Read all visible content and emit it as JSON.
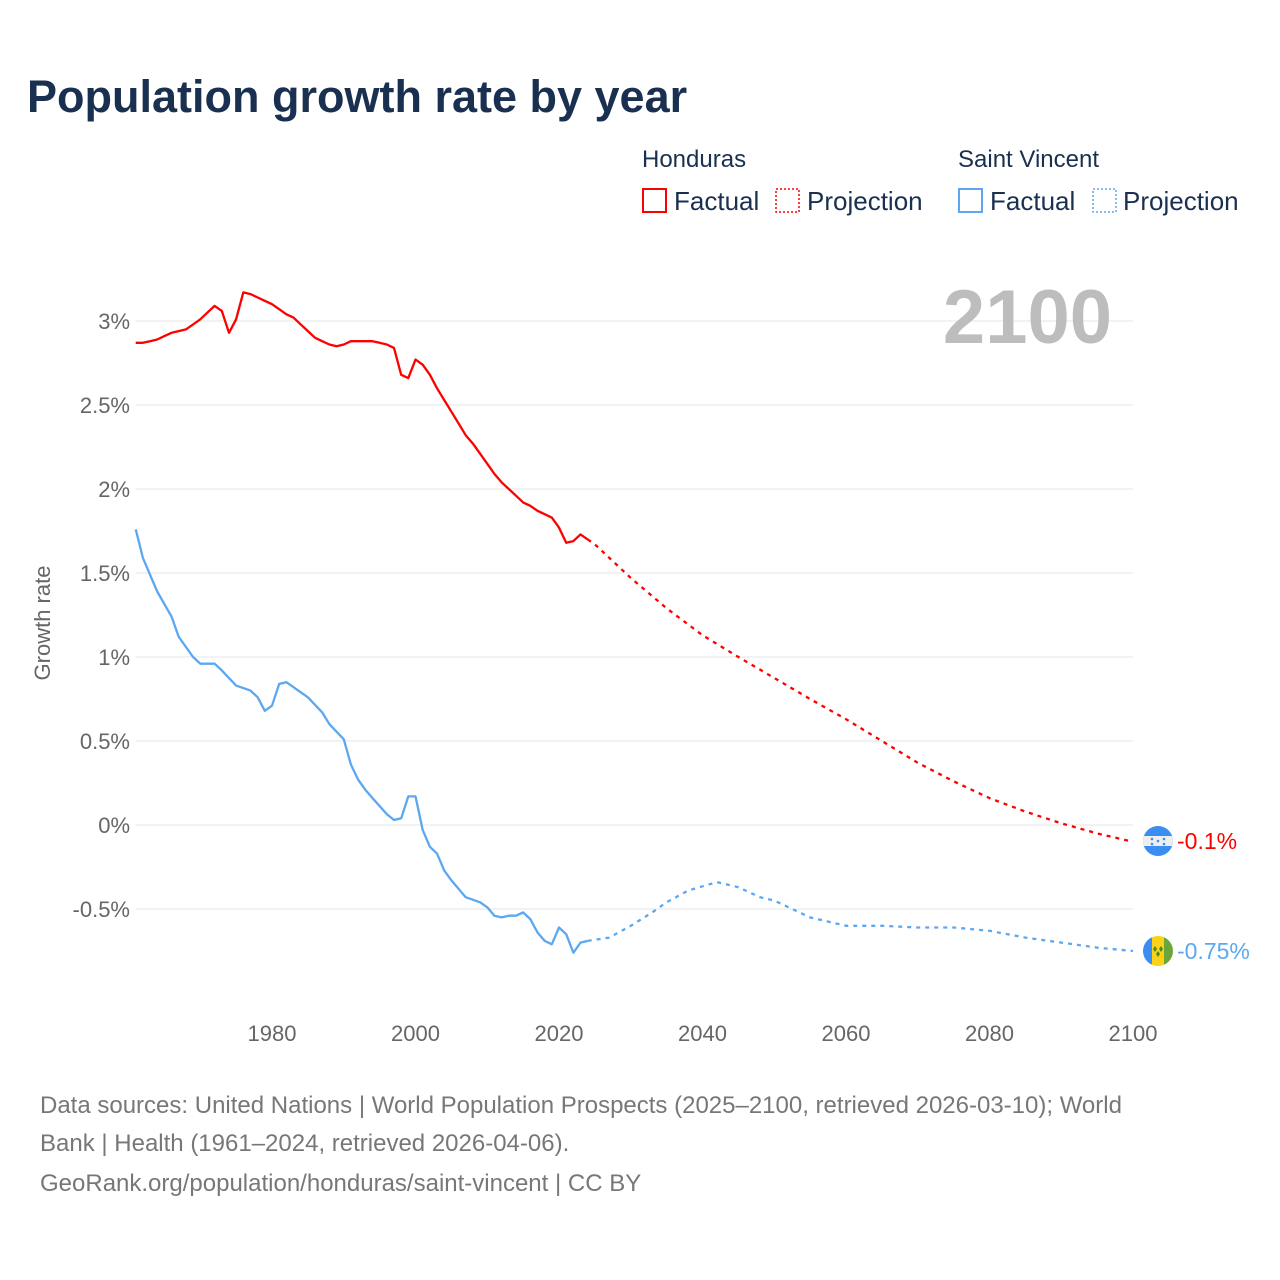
{
  "chart_data": {
    "type": "line",
    "title": "Population growth rate by year",
    "ylabel": "Growth rate",
    "xlabel": "",
    "xlim": [
      1961,
      2100
    ],
    "ylim": [
      -1,
      3.25
    ],
    "xticks": [
      1980,
      2000,
      2020,
      2040,
      2060,
      2080,
      2100
    ],
    "xtick_labels": [
      "1980",
      "2000",
      "2020",
      "2040",
      "2060",
      "2080",
      "2100"
    ],
    "yticks": [
      3,
      2.5,
      2,
      1.5,
      1,
      0.5,
      0,
      -0.5
    ],
    "ytick_labels": [
      "3%",
      "2.5%",
      "2%",
      "1.5%",
      "1%",
      "0.5%",
      "0%",
      "-0.5%"
    ],
    "grid": true,
    "year_label": "2100",
    "legend": {
      "placement": "top-right",
      "groups": [
        {
          "name": "Honduras",
          "factual": "Factual",
          "projection": "Projection",
          "color": "#ff0000"
        },
        {
          "name": "Saint Vincent",
          "factual": "Factual",
          "projection": "Projection",
          "color": "#5ca8f0"
        }
      ]
    },
    "series": [
      {
        "name": "Honduras",
        "color": "#ff0000",
        "end_label": "-0.1%",
        "factual": {
          "x": [
            1961,
            1962,
            1963,
            1964,
            1965,
            1966,
            1967,
            1968,
            1969,
            1970,
            1971,
            1972,
            1973,
            1974,
            1975,
            1976,
            1977,
            1978,
            1979,
            1980,
            1981,
            1982,
            1983,
            1984,
            1985,
            1986,
            1987,
            1988,
            1989,
            1990,
            1991,
            1992,
            1993,
            1994,
            1995,
            1996,
            1997,
            1998,
            1999,
            2000,
            2001,
            2002,
            2003,
            2004,
            2005,
            2006,
            2007,
            2008,
            2009,
            2010,
            2011,
            2012,
            2013,
            2014,
            2015,
            2016,
            2017,
            2018,
            2019,
            2020,
            2021,
            2022,
            2023,
            2024
          ],
          "y": [
            2.87,
            2.87,
            2.88,
            2.89,
            2.91,
            2.93,
            2.94,
            2.95,
            2.98,
            3.01,
            3.05,
            3.09,
            3.06,
            2.93,
            3.01,
            3.17,
            3.16,
            3.14,
            3.12,
            3.1,
            3.07,
            3.04,
            3.02,
            2.98,
            2.94,
            2.9,
            2.88,
            2.86,
            2.85,
            2.86,
            2.88,
            2.88,
            2.88,
            2.88,
            2.87,
            2.86,
            2.84,
            2.68,
            2.66,
            2.77,
            2.74,
            2.68,
            2.6,
            2.53,
            2.46,
            2.39,
            2.32,
            2.27,
            2.21,
            2.15,
            2.09,
            2.04,
            2.0,
            1.96,
            1.92,
            1.9,
            1.87,
            1.85,
            1.83,
            1.77,
            1.68,
            1.69,
            1.73,
            1.7
          ]
        },
        "projection": {
          "x": [
            2024,
            2025,
            2030,
            2035,
            2040,
            2045,
            2050,
            2055,
            2060,
            2065,
            2070,
            2075,
            2080,
            2085,
            2090,
            2095,
            2100
          ],
          "y": [
            1.7,
            1.67,
            1.47,
            1.29,
            1.13,
            1.0,
            0.875,
            0.75,
            0.63,
            0.5,
            0.37,
            0.26,
            0.16,
            0.08,
            0.01,
            -0.05,
            -0.1
          ]
        }
      },
      {
        "name": "Saint Vincent",
        "color": "#5ca8f0",
        "end_label": "-0.75%",
        "factual": {
          "x": [
            1961,
            1962,
            1964,
            1966,
            1967,
            1969,
            1970,
            1972,
            1973,
            1975,
            1977,
            1978,
            1979,
            1980,
            1981,
            1982,
            1985,
            1987,
            1988,
            1990,
            1991,
            1992,
            1993,
            1994,
            1996,
            1997,
            1998,
            1999,
            2000,
            2001,
            2002,
            2003,
            2004,
            2005,
            2007,
            2009,
            2010,
            2011,
            2012,
            2013,
            2014,
            2015,
            2016,
            2017,
            2018,
            2019,
            2020,
            2021,
            2022,
            2023,
            2024
          ],
          "y": [
            1.76,
            1.59,
            1.39,
            1.24,
            1.12,
            1.0,
            0.96,
            0.96,
            0.92,
            0.83,
            0.8,
            0.76,
            0.68,
            0.71,
            0.84,
            0.85,
            0.76,
            0.67,
            0.6,
            0.51,
            0.36,
            0.27,
            0.21,
            0.16,
            0.065,
            0.03,
            0.04,
            0.17,
            0.17,
            -0.03,
            -0.13,
            -0.17,
            -0.27,
            -0.33,
            -0.43,
            -0.46,
            -0.49,
            -0.54,
            -0.55,
            -0.54,
            -0.54,
            -0.52,
            -0.56,
            -0.64,
            -0.69,
            -0.71,
            -0.61,
            -0.65,
            -0.76,
            -0.7,
            -0.69
          ]
        },
        "projection": {
          "x": [
            2024,
            2027,
            2030,
            2033,
            2035,
            2038,
            2042,
            2045,
            2048,
            2050,
            2053,
            2055,
            2060,
            2065,
            2070,
            2075,
            2080,
            2085,
            2090,
            2095,
            2100
          ],
          "y": [
            -0.69,
            -0.67,
            -0.6,
            -0.52,
            -0.46,
            -0.39,
            -0.34,
            -0.37,
            -0.43,
            -0.45,
            -0.51,
            -0.55,
            -0.6,
            -0.6,
            -0.61,
            -0.61,
            -0.63,
            -0.67,
            -0.7,
            -0.73,
            -0.75
          ]
        }
      }
    ]
  },
  "footer": {
    "source_line1": "Data sources: United Nations | World Population Prospects (2025–2100, retrieved 2026-03-10); World",
    "source_line2": "Bank | Health (1961–2024, retrieved 2026-04-06).",
    "credit": "GeoRank.org/population/honduras/saint-vincent | CC BY"
  }
}
